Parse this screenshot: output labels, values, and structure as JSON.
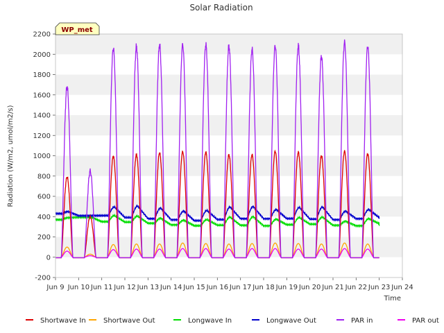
{
  "chart_data": {
    "type": "line",
    "title": "Solar Radiation",
    "xlabel": "Time",
    "ylabel": "Radiation (W/m2, umol/m2/s)",
    "ylim": [
      -200,
      2200
    ],
    "yticks": [
      -200,
      0,
      200,
      400,
      600,
      800,
      1000,
      1200,
      1400,
      1600,
      1800,
      2000,
      2200
    ],
    "xlim": [
      9.0,
      24.0
    ],
    "xticks": [
      {
        "value": 9,
        "label": "Jun 9"
      },
      {
        "value": 10,
        "label": "Jun 10"
      },
      {
        "value": 11,
        "label": "Jun 11"
      },
      {
        "value": 12,
        "label": "Jun 12"
      },
      {
        "value": 13,
        "label": "Jun 13"
      },
      {
        "value": 14,
        "label": "Jun 14"
      },
      {
        "value": 15,
        "label": "Jun 15"
      },
      {
        "value": 16,
        "label": "Jun 16"
      },
      {
        "value": 17,
        "label": "Jun 17"
      },
      {
        "value": 18,
        "label": "Jun 18"
      },
      {
        "value": 19,
        "label": "Jun 19"
      },
      {
        "value": 20,
        "label": "Jun 20"
      },
      {
        "value": 21,
        "label": "Jun 21"
      },
      {
        "value": 22,
        "label": "Jun 22"
      },
      {
        "value": 23,
        "label": "Jun 23"
      },
      {
        "value": 24,
        "label": "Jun 24"
      }
    ],
    "data_range": [
      9.0,
      23.0
    ],
    "grid": "horizontal bands",
    "legend_position": "bottom",
    "annotation": "WP_met",
    "series": [
      {
        "name": "Shortwave In",
        "color": "#dd0000",
        "daily_peaks": [
          790,
          400,
          995,
          1010,
          1030,
          1040,
          1035,
          1010,
          1010,
          1045,
          1035,
          1000,
          1045,
          1020
        ]
      },
      {
        "name": "Shortwave Out",
        "color": "#ffa500",
        "daily_peaks": [
          100,
          30,
          125,
          130,
          130,
          140,
          135,
          130,
          135,
          140,
          135,
          130,
          140,
          130
        ]
      },
      {
        "name": "Longwave In",
        "color": "#00dd00",
        "night_values": [
          370,
          395,
          350,
          345,
          335,
          320,
          310,
          315,
          315,
          310,
          320,
          325,
          315,
          310
        ],
        "day_values": [
          390,
          395,
          410,
          405,
          385,
          365,
          370,
          395,
          400,
          375,
          390,
          395,
          355,
          380
        ],
        "end_value": 330
      },
      {
        "name": "Longwave Out",
        "color": "#0000cc",
        "night_values": [
          430,
          410,
          410,
          390,
          380,
          370,
          360,
          370,
          380,
          380,
          380,
          375,
          370,
          380
        ],
        "day_values": [
          450,
          410,
          495,
          505,
          485,
          455,
          460,
          495,
          500,
          470,
          490,
          495,
          455,
          470
        ],
        "end_value": 390
      },
      {
        "name": "PAR in",
        "color": "#a020f0",
        "daily_peaks": [
          1680,
          850,
          2060,
          2075,
          2095,
          2095,
          2095,
          2080,
          2050,
          2085,
          2080,
          1980,
          2120,
          2080
        ]
      },
      {
        "name": "PAR out",
        "color": "#ee00ee",
        "daily_peaks": [
          60,
          15,
          75,
          80,
          80,
          85,
          85,
          80,
          85,
          85,
          80,
          80,
          85,
          80
        ]
      }
    ]
  }
}
